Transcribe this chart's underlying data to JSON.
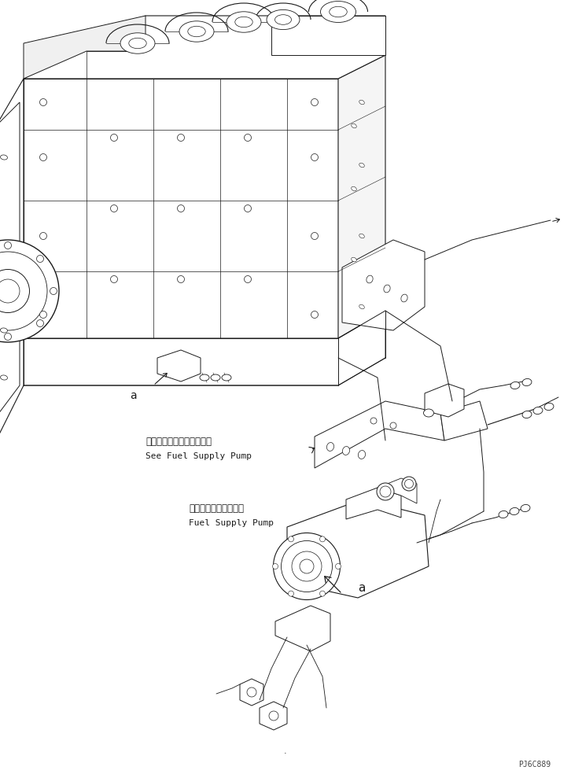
{
  "bg_color": "#ffffff",
  "line_color": "#1a1a1a",
  "fig_width": 7.26,
  "fig_height": 9.84,
  "dpi": 100,
  "watermark": "PJ6C889",
  "label1_jp": "フェルサプライポンプ参照",
  "label1_en": "See Fuel Supply Pump",
  "label2_jp": "フェルサプライポンプ",
  "label2_en": "Fuel Supply Pump",
  "label_a": "a",
  "dot": "."
}
